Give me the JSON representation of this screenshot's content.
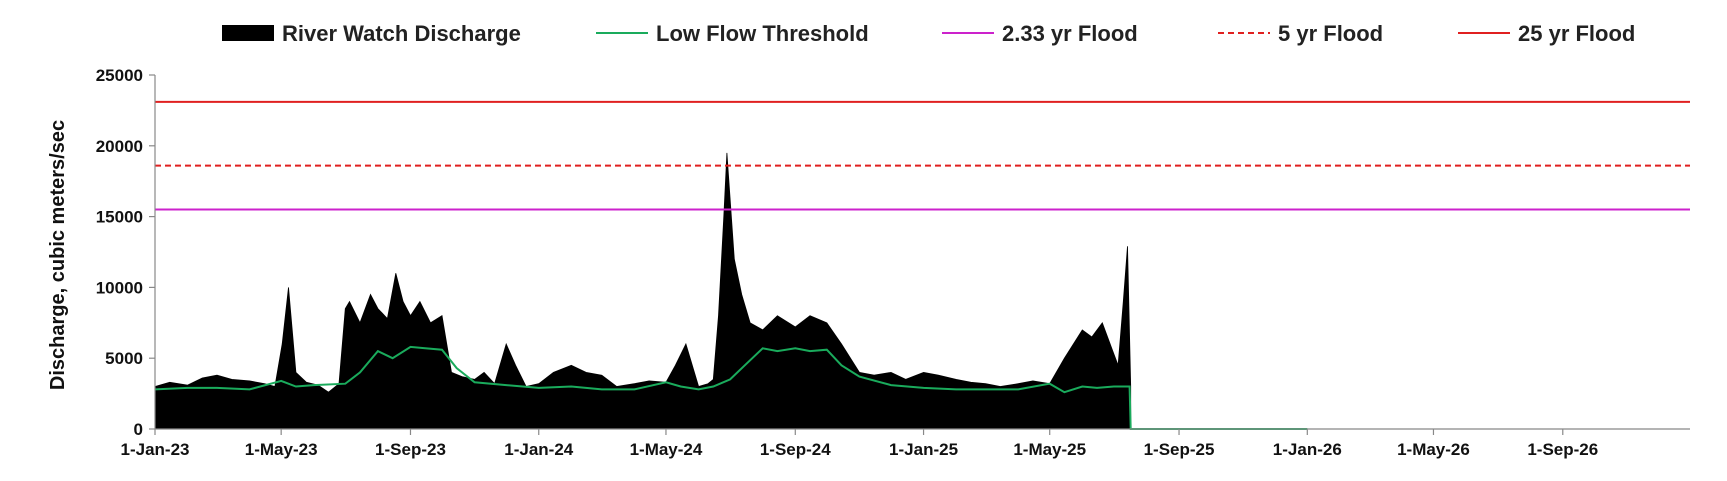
{
  "chart_data": {
    "type": "area",
    "title": "",
    "xlabel": "",
    "ylabel": "Discharge, cubic meters/sec",
    "ylim": [
      0,
      25000
    ],
    "yticks": [
      0,
      5000,
      10000,
      15000,
      20000,
      25000
    ],
    "xlim": [
      "2023-01-01",
      "2026-12-31"
    ],
    "xticks": [
      {
        "date": "2023-01-01",
        "label": "1-Jan-23"
      },
      {
        "date": "2023-05-01",
        "label": "1-May-23"
      },
      {
        "date": "2023-09-01",
        "label": "1-Sep-23"
      },
      {
        "date": "2024-01-01",
        "label": "1-Jan-24"
      },
      {
        "date": "2024-05-01",
        "label": "1-May-24"
      },
      {
        "date": "2024-09-01",
        "label": "1-Sep-24"
      },
      {
        "date": "2025-01-01",
        "label": "1-Jan-25"
      },
      {
        "date": "2025-05-01",
        "label": "1-May-25"
      },
      {
        "date": "2025-09-01",
        "label": "1-Sep-25"
      },
      {
        "date": "2026-01-01",
        "label": "1-Jan-26"
      },
      {
        "date": "2026-05-01",
        "label": "1-May-26"
      },
      {
        "date": "2026-09-01",
        "label": "1-Sep-26"
      }
    ],
    "grid": false,
    "legend_position": "top",
    "series": [
      {
        "name": "River Watch Discharge",
        "kind": "area",
        "color": "#000000",
        "x": [
          "2023-01-01",
          "2023-01-15",
          "2023-02-01",
          "2023-02-15",
          "2023-03-01",
          "2023-03-15",
          "2023-04-01",
          "2023-04-15",
          "2023-04-25",
          "2023-05-02",
          "2023-05-08",
          "2023-05-15",
          "2023-05-25",
          "2023-06-05",
          "2023-06-15",
          "2023-06-25",
          "2023-07-01",
          "2023-07-05",
          "2023-07-15",
          "2023-07-25",
          "2023-08-01",
          "2023-08-10",
          "2023-08-18",
          "2023-08-25",
          "2023-09-01",
          "2023-09-10",
          "2023-09-20",
          "2023-10-01",
          "2023-10-10",
          "2023-10-20",
          "2023-11-01",
          "2023-11-10",
          "2023-11-20",
          "2023-12-01",
          "2023-12-10",
          "2023-12-20",
          "2024-01-01",
          "2024-01-15",
          "2024-02-01",
          "2024-02-15",
          "2024-03-01",
          "2024-03-15",
          "2024-04-01",
          "2024-04-15",
          "2024-05-01",
          "2024-05-10",
          "2024-05-20",
          "2024-06-01",
          "2024-06-10",
          "2024-06-15",
          "2024-06-20",
          "2024-06-25",
          "2024-06-28",
          "2024-07-05",
          "2024-07-12",
          "2024-07-20",
          "2024-08-01",
          "2024-08-15",
          "2024-09-01",
          "2024-09-15",
          "2024-10-01",
          "2024-10-15",
          "2024-11-01",
          "2024-11-15",
          "2024-12-01",
          "2024-12-15",
          "2025-01-01",
          "2025-01-15",
          "2025-02-01",
          "2025-02-15",
          "2025-03-01",
          "2025-03-15",
          "2025-04-01",
          "2025-04-15",
          "2025-05-01",
          "2025-05-15",
          "2025-06-01",
          "2025-06-10",
          "2025-06-20",
          "2025-06-30",
          "2025-07-05",
          "2025-07-10",
          "2025-07-14",
          "2025-07-17"
        ],
        "y": [
          3000,
          3300,
          3100,
          3600,
          3800,
          3500,
          3400,
          3200,
          3000,
          6000,
          10000,
          4000,
          3300,
          3100,
          2600,
          3200,
          8500,
          9000,
          7500,
          9500,
          8500,
          7800,
          11000,
          9000,
          8000,
          9000,
          7500,
          8000,
          4000,
          3700,
          3500,
          4000,
          3200,
          6000,
          4500,
          3000,
          3200,
          4000,
          4500,
          4000,
          3800,
          3000,
          3200,
          3400,
          3300,
          4500,
          6000,
          3000,
          3200,
          3500,
          8000,
          15000,
          19500,
          12000,
          9500,
          7500,
          7000,
          8000,
          7200,
          8000,
          7500,
          6000,
          4000,
          3800,
          4000,
          3500,
          4000,
          3800,
          3500,
          3300,
          3200,
          3000,
          3200,
          3400,
          3200,
          5000,
          7000,
          6500,
          7500,
          5500,
          4500,
          9000,
          12900,
          3000
        ],
        "end_date": "2025-07-17"
      },
      {
        "name": "Low Flow Threshold",
        "kind": "line",
        "color": "#1aab5c",
        "dash": "solid",
        "x": [
          "2023-01-01",
          "2023-02-01",
          "2023-03-01",
          "2023-04-01",
          "2023-05-01",
          "2023-05-15",
          "2023-06-01",
          "2023-07-01",
          "2023-07-15",
          "2023-08-01",
          "2023-08-15",
          "2023-09-01",
          "2023-09-15",
          "2023-10-01",
          "2023-10-15",
          "2023-11-01",
          "2023-12-01",
          "2024-01-01",
          "2024-02-01",
          "2024-03-01",
          "2024-04-01",
          "2024-05-01",
          "2024-05-15",
          "2024-06-01",
          "2024-06-15",
          "2024-07-01",
          "2024-07-15",
          "2024-08-01",
          "2024-08-15",
          "2024-09-01",
          "2024-09-15",
          "2024-10-01",
          "2024-10-15",
          "2024-11-01",
          "2024-12-01",
          "2025-01-01",
          "2025-02-01",
          "2025-03-01",
          "2025-04-01",
          "2025-05-01",
          "2025-05-15",
          "2025-06-01",
          "2025-06-15",
          "2025-07-01",
          "2025-07-16",
          "2025-07-17",
          "2026-01-01"
        ],
        "y": [
          2800,
          2900,
          2900,
          2800,
          3400,
          3000,
          3100,
          3200,
          4000,
          5500,
          5000,
          5800,
          5700,
          5600,
          4300,
          3300,
          3100,
          2900,
          3000,
          2800,
          2800,
          3300,
          3000,
          2800,
          3000,
          3500,
          4500,
          5700,
          5500,
          5700,
          5500,
          5600,
          4500,
          3700,
          3100,
          2900,
          2800,
          2800,
          2800,
          3200,
          2600,
          3000,
          2900,
          3000,
          3000,
          0,
          0
        ],
        "end_date": "2026-01-01"
      },
      {
        "name": "2.33 yr Flood",
        "kind": "hline",
        "color": "#cc22cc",
        "dash": "solid",
        "value": 15500
      },
      {
        "name": "5 yr Flood",
        "kind": "hline",
        "color": "#e02020",
        "dash": "dashed",
        "value": 18600
      },
      {
        "name": "25 yr Flood",
        "kind": "hline",
        "color": "#e02020",
        "dash": "solid",
        "value": 23100
      }
    ]
  }
}
